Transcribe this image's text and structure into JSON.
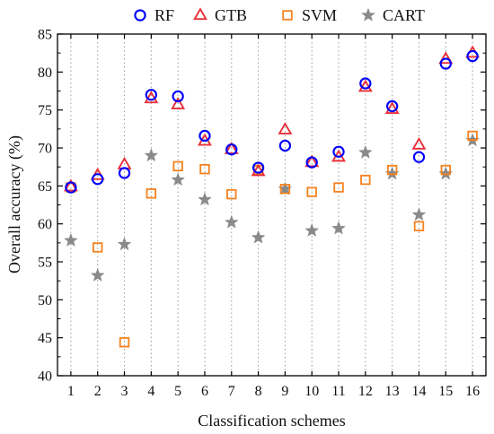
{
  "chart_data": {
    "type": "scatter",
    "xlabel": "Classification schemes",
    "ylabel": "Overall accuracy (%)",
    "ylim": [
      40,
      85
    ],
    "xlim": [
      0.5,
      16.5
    ],
    "x_ticks": [
      1,
      2,
      3,
      4,
      5,
      6,
      7,
      8,
      9,
      10,
      11,
      12,
      13,
      14,
      15,
      16
    ],
    "y_ticks": [
      40,
      45,
      50,
      55,
      60,
      65,
      70,
      75,
      80,
      85
    ],
    "grid": "vertical dotted lines at each x tick",
    "legend_position": "top",
    "series": [
      {
        "name": "RF",
        "marker": "circle",
        "color": "#0000ff",
        "values": [
          64.8,
          65.9,
          66.7,
          77.0,
          76.8,
          71.6,
          69.8,
          67.4,
          70.3,
          68.1,
          69.5,
          78.5,
          75.5,
          68.8,
          81.1,
          82.1
        ]
      },
      {
        "name": "GTB",
        "marker": "triangle",
        "color": "#e8303a",
        "values": [
          64.9,
          66.4,
          67.8,
          76.5,
          75.7,
          70.9,
          69.8,
          66.9,
          72.4,
          68.1,
          68.8,
          78.0,
          75.1,
          70.4,
          81.7,
          82.5
        ]
      },
      {
        "name": "SVM",
        "marker": "square",
        "color": "#f5821f",
        "values": [
          64.8,
          56.9,
          44.4,
          64.0,
          67.6,
          67.2,
          63.9,
          67.1,
          64.6,
          64.2,
          64.8,
          65.8,
          67.1,
          59.7,
          67.1,
          71.6
        ]
      },
      {
        "name": "CART",
        "marker": "star",
        "color": "#8a8a8a",
        "values": [
          57.8,
          53.2,
          57.3,
          69.0,
          65.8,
          63.2,
          60.2,
          58.2,
          64.6,
          59.1,
          59.4,
          69.4,
          66.6,
          61.2,
          66.6,
          71.0
        ]
      }
    ]
  }
}
